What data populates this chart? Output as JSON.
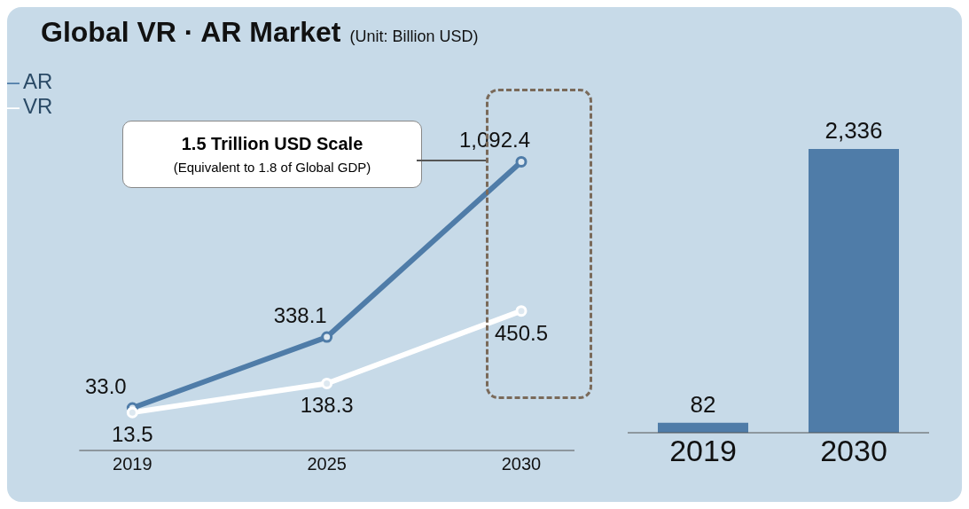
{
  "chart_data": [
    {
      "type": "line",
      "title": "Global VR · AR Market",
      "subtitle": "(Unit: Billion USD)",
      "categories": [
        "2019",
        "2025",
        "2030"
      ],
      "series": [
        {
          "name": "AR",
          "color": "#4f7ca8",
          "values": [
            33.0,
            338.1,
            1092.4
          ],
          "value_labels": [
            "33.0",
            "338.1",
            "1,092.4"
          ]
        },
        {
          "name": "VR",
          "color": "#ffffff",
          "values": [
            13.5,
            138.3,
            450.5
          ],
          "value_labels": [
            "13.5",
            "138.3",
            "450.5"
          ]
        }
      ],
      "annotations": [
        "1.5 Trillion USD Scale",
        "(Equivalent to 1.8 of Global GDP)"
      ],
      "legend": "top left",
      "marker": "circle",
      "line_style": "solid",
      "tick_labels": "x"
    },
    {
      "type": "bar",
      "categories": [
        "2019",
        "2030"
      ],
      "values": [
        82,
        2336
      ],
      "value_labels": [
        "82",
        "2,336"
      ],
      "colors": [
        "#4f7ca8",
        "#4f7ca8"
      ],
      "tick_labels": "x"
    }
  ]
}
